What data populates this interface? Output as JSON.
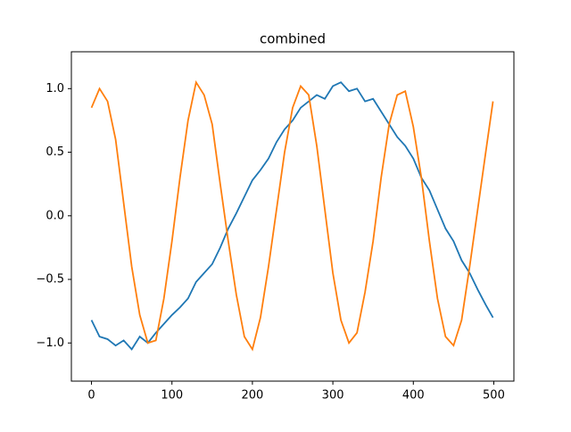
{
  "chart_data": {
    "type": "line",
    "title": "combined",
    "x": [
      0,
      10,
      20,
      30,
      40,
      50,
      60,
      70,
      80,
      90,
      100,
      110,
      120,
      130,
      140,
      150,
      160,
      170,
      180,
      190,
      200,
      210,
      220,
      230,
      240,
      250,
      260,
      270,
      280,
      290,
      300,
      310,
      320,
      330,
      340,
      350,
      360,
      370,
      380,
      390,
      400,
      410,
      420,
      430,
      440,
      450,
      460,
      470,
      480,
      490,
      499
    ],
    "series": [
      {
        "name": "blue",
        "color": "#1f77b4",
        "values": [
          -0.82,
          -0.95,
          -0.97,
          -1.02,
          -0.98,
          -1.05,
          -0.95,
          -1.0,
          -0.92,
          -0.85,
          -0.78,
          -0.72,
          -0.65,
          -0.52,
          -0.45,
          -0.38,
          -0.25,
          -0.1,
          0.02,
          0.15,
          0.28,
          0.36,
          0.45,
          0.58,
          0.68,
          0.75,
          0.85,
          0.9,
          0.95,
          0.92,
          1.02,
          1.05,
          0.98,
          1.0,
          0.9,
          0.92,
          0.82,
          0.72,
          0.62,
          0.55,
          0.45,
          0.3,
          0.2,
          0.05,
          -0.1,
          -0.2,
          -0.35,
          -0.45,
          -0.58,
          -0.7,
          -0.8
        ]
      },
      {
        "name": "orange",
        "color": "#ff7f0e",
        "values": [
          0.85,
          1.0,
          0.9,
          0.6,
          0.1,
          -0.4,
          -0.78,
          -1.0,
          -0.98,
          -0.65,
          -0.2,
          0.3,
          0.75,
          1.05,
          0.95,
          0.72,
          0.25,
          -0.2,
          -0.62,
          -0.95,
          -1.05,
          -0.8,
          -0.4,
          0.05,
          0.5,
          0.85,
          1.02,
          0.95,
          0.55,
          0.05,
          -0.45,
          -0.82,
          -1.0,
          -0.92,
          -0.6,
          -0.2,
          0.3,
          0.72,
          0.95,
          0.98,
          0.7,
          0.3,
          -0.2,
          -0.65,
          -0.95,
          -1.02,
          -0.82,
          -0.4,
          0.05,
          0.5,
          0.9
        ]
      }
    ],
    "xlim": [
      -25,
      525
    ],
    "xticks": [
      0,
      100,
      200,
      300,
      400,
      500
    ],
    "ylim": [
      -1.3,
      1.29
    ],
    "yticks": [
      {
        "value": -1.0,
        "label": "−1.0"
      },
      {
        "value": -0.5,
        "label": "−0.5"
      },
      {
        "value": 0.0,
        "label": "0.0"
      },
      0.5,
      {
        "value": 1.0,
        "label": "1.0"
      }
    ]
  }
}
